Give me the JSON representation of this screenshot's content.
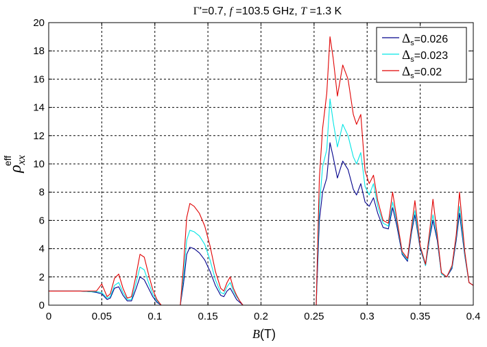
{
  "chart_data": {
    "type": "line",
    "title": {
      "parts": [
        "Γ",
        "'=0.7, ",
        "f",
        " =103.5 GHz, ",
        "T",
        " =1.3 K"
      ]
    },
    "xlabel": {
      "symbol": "B",
      "unit": "(T)"
    },
    "ylabel": {
      "symbol": "ρ",
      "subscript": "xx",
      "superscript": "eff"
    },
    "xlim": [
      0,
      0.4
    ],
    "ylim": [
      0,
      20
    ],
    "xticks": [
      0,
      0.05,
      0.1,
      0.15,
      0.2,
      0.25,
      0.3,
      0.35,
      0.4
    ],
    "xtick_labels": [
      "0",
      "0.05",
      "0.1",
      "0.15",
      "0.2",
      "0.25",
      "0.3",
      "0.35",
      "0.4"
    ],
    "yticks": [
      0,
      2,
      4,
      6,
      8,
      10,
      12,
      14,
      16,
      18,
      20
    ],
    "ytick_labels": [
      "0",
      "2",
      "4",
      "6",
      "8",
      "10",
      "12",
      "14",
      "16",
      "18",
      "20"
    ],
    "grid": true,
    "legend_position": "top-right",
    "series": [
      {
        "name": "Δs=0.026",
        "legend": {
          "symbol": "Δ",
          "subscript": "s",
          "value": "=0.026"
        },
        "color": "#00008b",
        "x": [
          0,
          0.03,
          0.04,
          0.045,
          0.05,
          0.055,
          0.058,
          0.062,
          0.066,
          0.07,
          0.074,
          0.078,
          0.082,
          0.086,
          0.09,
          0.094,
          0.098,
          0.102,
          0.106,
          0.11,
          0.124,
          0.127,
          0.13,
          0.133,
          0.137,
          0.142,
          0.147,
          0.152,
          0.157,
          0.162,
          0.165,
          0.168,
          0.171,
          0.174,
          0.177,
          0.18,
          0.183,
          0.184,
          0.252,
          0.253,
          0.255,
          0.258,
          0.262,
          0.265,
          0.268,
          0.272,
          0.277,
          0.282,
          0.287,
          0.29,
          0.294,
          0.298,
          0.302,
          0.306,
          0.31,
          0.315,
          0.32,
          0.324,
          0.328,
          0.333,
          0.338,
          0.342,
          0.345,
          0.35,
          0.355,
          0.359,
          0.362,
          0.366,
          0.37,
          0.375,
          0.38,
          0.384,
          0.387,
          0.392,
          0.396,
          0.4
        ],
        "y": [
          1,
          1,
          0.95,
          0.9,
          0.8,
          0.4,
          0.5,
          1.2,
          1.3,
          0.7,
          0.3,
          0.3,
          1.1,
          2.0,
          1.8,
          1.2,
          0.6,
          0.2,
          0.0,
          0.0,
          0.0,
          1.5,
          3.6,
          4.1,
          4.0,
          3.7,
          3.2,
          2.4,
          1.4,
          0.7,
          0.6,
          1.0,
          1.2,
          0.8,
          0.4,
          0.2,
          0.0,
          0.0,
          0.0,
          2.0,
          6.0,
          8.0,
          9.0,
          11.5,
          10.5,
          9.0,
          10.2,
          9.6,
          8.2,
          7.8,
          8.6,
          7.3,
          7.0,
          7.6,
          6.5,
          5.5,
          5.4,
          6.9,
          5.6,
          3.6,
          3.1,
          5.2,
          6.4,
          4.0,
          2.8,
          4.8,
          6.0,
          4.6,
          2.2,
          2.0,
          2.6,
          4.6,
          6.5,
          3.5,
          1.6,
          1.4
        ]
      },
      {
        "name": "Δs=0.023",
        "legend": {
          "symbol": "Δ",
          "subscript": "s",
          "value": "=0.023"
        },
        "color": "#00e5e5",
        "x": [
          0,
          0.03,
          0.04,
          0.045,
          0.05,
          0.055,
          0.058,
          0.062,
          0.066,
          0.07,
          0.074,
          0.078,
          0.082,
          0.086,
          0.09,
          0.094,
          0.098,
          0.102,
          0.106,
          0.11,
          0.124,
          0.127,
          0.13,
          0.133,
          0.137,
          0.142,
          0.147,
          0.152,
          0.157,
          0.162,
          0.165,
          0.168,
          0.171,
          0.174,
          0.177,
          0.18,
          0.183,
          0.184,
          0.252,
          0.253,
          0.255,
          0.258,
          0.262,
          0.265,
          0.268,
          0.272,
          0.277,
          0.282,
          0.287,
          0.29,
          0.294,
          0.298,
          0.302,
          0.306,
          0.31,
          0.315,
          0.32,
          0.324,
          0.328,
          0.333,
          0.338,
          0.342,
          0.345,
          0.35,
          0.355,
          0.359,
          0.362,
          0.366,
          0.37,
          0.375,
          0.38,
          0.384,
          0.387,
          0.392,
          0.396,
          0.4
        ],
        "y": [
          1,
          1,
          0.95,
          0.95,
          0.9,
          0.5,
          0.6,
          1.4,
          1.6,
          0.9,
          0.4,
          0.4,
          1.5,
          2.7,
          2.5,
          1.6,
          0.8,
          0.3,
          0.0,
          0.0,
          0.0,
          2.0,
          4.6,
          5.3,
          5.2,
          4.9,
          4.3,
          3.2,
          1.8,
          0.9,
          0.8,
          1.3,
          1.6,
          1.0,
          0.6,
          0.3,
          0.0,
          0.0,
          0.0,
          2.5,
          7.0,
          9.8,
          11.0,
          14.6,
          13.0,
          11.2,
          12.8,
          12.0,
          10.5,
          10.0,
          10.8,
          8.4,
          7.8,
          8.6,
          7.0,
          5.8,
          5.6,
          7.3,
          5.9,
          3.7,
          3.2,
          5.4,
          6.7,
          4.1,
          2.8,
          5.0,
          6.4,
          4.8,
          2.2,
          2.0,
          2.7,
          4.8,
          7.0,
          3.6,
          1.6,
          1.4
        ]
      },
      {
        "name": "Δs=0.02",
        "legend": {
          "symbol": "Δ",
          "subscript": "s",
          "value": "=0.02"
        },
        "color": "#e00000",
        "x": [
          0,
          0.03,
          0.04,
          0.045,
          0.05,
          0.055,
          0.058,
          0.062,
          0.066,
          0.07,
          0.074,
          0.078,
          0.082,
          0.086,
          0.09,
          0.094,
          0.098,
          0.102,
          0.106,
          0.11,
          0.124,
          0.127,
          0.13,
          0.133,
          0.137,
          0.142,
          0.147,
          0.152,
          0.157,
          0.162,
          0.165,
          0.168,
          0.171,
          0.174,
          0.177,
          0.18,
          0.183,
          0.184,
          0.252,
          0.253,
          0.255,
          0.258,
          0.262,
          0.265,
          0.268,
          0.272,
          0.277,
          0.282,
          0.287,
          0.29,
          0.294,
          0.298,
          0.302,
          0.306,
          0.31,
          0.315,
          0.32,
          0.324,
          0.328,
          0.333,
          0.338,
          0.342,
          0.345,
          0.35,
          0.355,
          0.359,
          0.362,
          0.366,
          0.37,
          0.375,
          0.38,
          0.384,
          0.387,
          0.392,
          0.396,
          0.4
        ],
        "y": [
          1,
          1,
          1.0,
          1.0,
          1.5,
          0.6,
          0.8,
          1.9,
          2.2,
          1.2,
          0.5,
          0.6,
          2.0,
          3.6,
          3.4,
          2.2,
          1.1,
          0.4,
          0.0,
          0.0,
          0.0,
          2.8,
          6.2,
          7.2,
          7.0,
          6.5,
          5.6,
          4.2,
          2.4,
          1.2,
          1.0,
          1.6,
          2.0,
          1.2,
          0.7,
          0.3,
          0.0,
          0.0,
          0.0,
          3.0,
          9.0,
          12.5,
          15.0,
          19.0,
          17.5,
          14.8,
          17.0,
          16.0,
          13.5,
          12.8,
          13.5,
          9.5,
          8.6,
          9.2,
          7.4,
          6.0,
          5.8,
          8.0,
          6.1,
          3.8,
          3.3,
          5.6,
          7.4,
          4.2,
          2.9,
          5.3,
          7.5,
          5.0,
          2.3,
          2.0,
          2.8,
          5.0,
          8.0,
          3.8,
          1.6,
          1.4
        ]
      }
    ]
  }
}
